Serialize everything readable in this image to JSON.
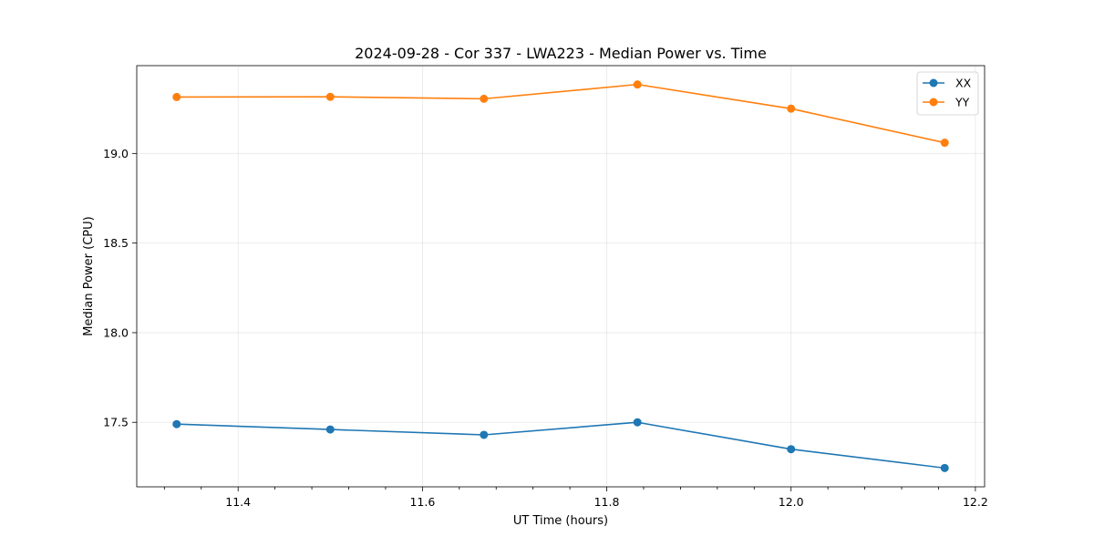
{
  "chart_data": {
    "type": "line",
    "title": "2024-09-28 - Cor 337 - LWA223 - Median Power vs. Time",
    "xlabel": "UT Time (hours)",
    "ylabel": "Median Power (CPU)",
    "xlim": [
      11.29,
      12.21
    ],
    "ylim": [
      17.14,
      19.49
    ],
    "xticks": [
      11.4,
      11.6,
      11.8,
      12.0,
      12.2
    ],
    "xtick_labels": [
      "11.4",
      "11.6",
      "11.8",
      "12.0",
      "12.2"
    ],
    "xminor_step": 0.04,
    "yticks": [
      17.5,
      18.0,
      18.5,
      19.0
    ],
    "ytick_labels": [
      "17.5",
      "18.0",
      "18.5",
      "19.0"
    ],
    "grid": true,
    "legend_position": "top-right",
    "x": [
      11.3333,
      11.5,
      11.6667,
      11.8333,
      12.0,
      12.1667
    ],
    "series": [
      {
        "name": "XX",
        "color": "#1f77b4",
        "marker": "circle",
        "values": [
          17.49,
          17.46,
          17.43,
          17.5,
          17.35,
          17.245
        ]
      },
      {
        "name": "YY",
        "color": "#ff7f0e",
        "marker": "circle",
        "values": [
          19.315,
          19.316,
          19.305,
          19.385,
          19.25,
          19.06
        ]
      }
    ]
  }
}
